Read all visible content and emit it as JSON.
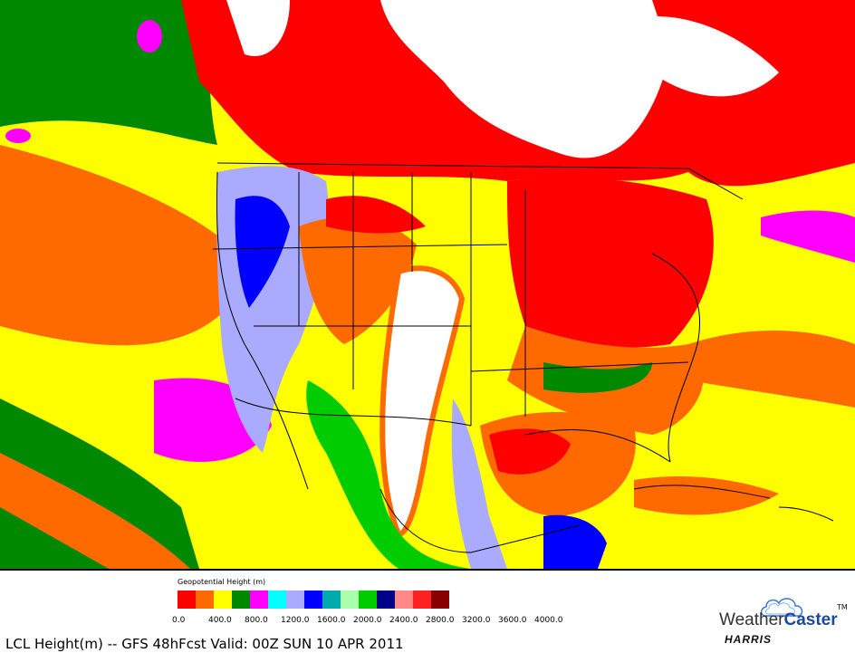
{
  "caption": "LCL Height(m) -- GFS  48hFcst Valid: 00Z SUN 10 APR 2011",
  "legend": {
    "title": "Geopotential Height (m)",
    "colors": [
      "#ff0000",
      "#ff6a00",
      "#ffff00",
      "#008800",
      "#ff00ff",
      "#00ffff",
      "#aaaaff",
      "#0000ff",
      "#00aaaa",
      "#aaffaa",
      "#00cc00",
      "#000088",
      "#ff8888",
      "#ff2222",
      "#880000"
    ],
    "tick_labels": [
      "0.0",
      "400.0",
      "800.0",
      "1200.0",
      "1600.0",
      "2000.0",
      "2400.0",
      "2800.0",
      "3200.0",
      "3600.0",
      "4000.0"
    ]
  },
  "logo": {
    "weather": "Weather",
    "caster": "Caster",
    "tm": "TM",
    "harris": "HARRIS"
  }
}
